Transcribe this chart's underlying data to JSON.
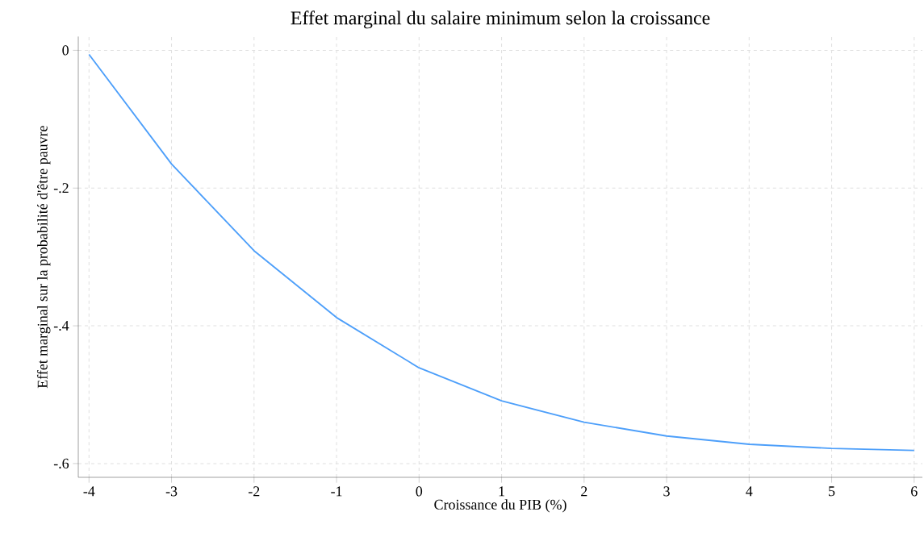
{
  "chart_data": {
    "type": "line",
    "title": "Effet marginal du salaire minimum selon la croissance",
    "xlabel": "Croissance du PIB (%)",
    "ylabel": "Effet marginal sur la probabilité d'être pauvre",
    "x": [
      -4,
      -3,
      -2,
      -1,
      0,
      1,
      2,
      3,
      4,
      5,
      6
    ],
    "series": [
      {
        "color": "#4d9ffa",
        "values": [
          -0.006,
          -0.165,
          -0.291,
          -0.388,
          -0.461,
          -0.509,
          -0.54,
          -0.56,
          -0.572,
          -0.578,
          -0.581
        ]
      }
    ],
    "xlim": [
      -4.13,
      6.1
    ],
    "ylim": [
      -0.62,
      0.02
    ],
    "xticks": [
      -4,
      -3,
      -2,
      -1,
      0,
      1,
      2,
      3,
      4,
      5,
      6
    ],
    "yticks": [
      {
        "value": -0.6,
        "label": "-.6"
      },
      {
        "value": -0.4,
        "label": "-.4"
      },
      {
        "value": -0.2,
        "label": "-.2"
      },
      0
    ],
    "grid": true,
    "marker": "none",
    "line_style": "solid"
  }
}
